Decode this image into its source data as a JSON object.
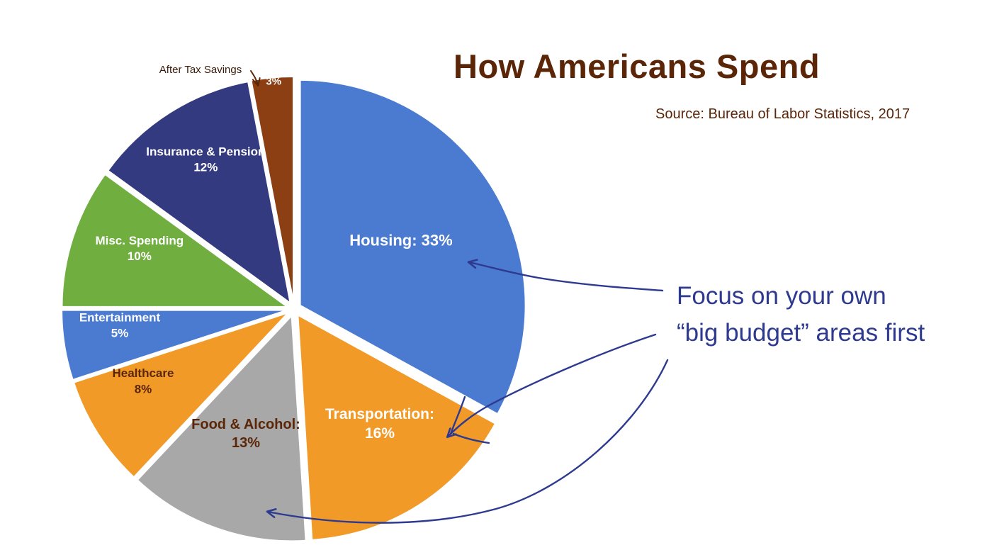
{
  "title": "How Americans Spend",
  "source": "Source: Bureau of Labor Statistics, 2017",
  "callout": {
    "line1": "Focus on your own",
    "line2": "“big budget” areas first"
  },
  "chart_data": {
    "type": "pie",
    "title": "How Americans Spend",
    "exploded": true,
    "slices": [
      {
        "name": "Housing",
        "value": 33,
        "label": "Housing:",
        "pct_label": "33%",
        "color": "#4a7bd0"
      },
      {
        "name": "Transportation",
        "value": 16,
        "label": "Transportation:",
        "pct_label": "16%",
        "color": "#f19a28"
      },
      {
        "name": "Food & Alcohol",
        "value": 13,
        "label": "Food & Alcohol:",
        "pct_label": "13%",
        "color": "#a8a8a8"
      },
      {
        "name": "Healthcare",
        "value": 8,
        "label": "Healthcare",
        "pct_label": "8%",
        "color": "#f19a28"
      },
      {
        "name": "Entertainment",
        "value": 5,
        "label": "Entertainment",
        "pct_label": "5%",
        "color": "#4a7bd0"
      },
      {
        "name": "Misc. Spending",
        "value": 10,
        "label": "Misc. Spending",
        "pct_label": "10%",
        "color": "#6fae3f"
      },
      {
        "name": "Insurance & Pension",
        "value": 12,
        "label": "Insurance & Pension",
        "pct_label": "12%",
        "color": "#333a80"
      },
      {
        "name": "After Tax Savings",
        "value": 3,
        "label": "After Tax Savings",
        "pct_label": "3%",
        "color": "#8b3f12"
      }
    ]
  }
}
